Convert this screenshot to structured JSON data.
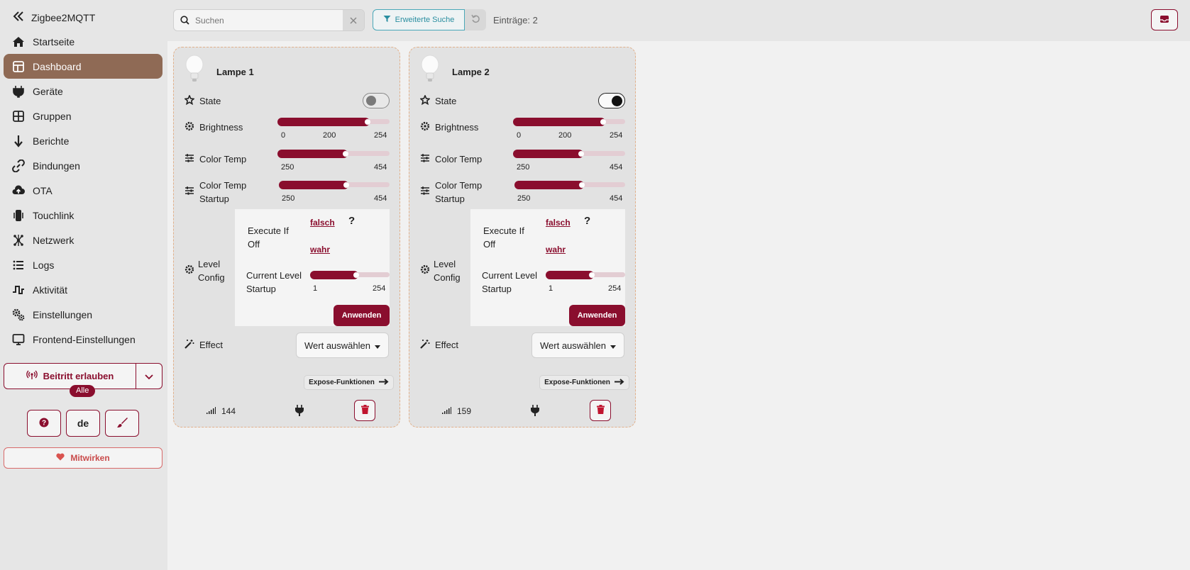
{
  "app": {
    "title": "Zigbee2MQTT"
  },
  "nav": [
    {
      "label": "Startseite",
      "icon": "home-icon",
      "active": false
    },
    {
      "label": "Dashboard",
      "icon": "dashboard-icon",
      "active": true
    },
    {
      "label": "Geräte",
      "icon": "plug-icon",
      "active": false
    },
    {
      "label": "Gruppen",
      "icon": "groups-icon",
      "active": false
    },
    {
      "label": "Berichte",
      "icon": "arrow-down-icon",
      "active": false
    },
    {
      "label": "Bindungen",
      "icon": "link-icon",
      "active": false
    },
    {
      "label": "OTA",
      "icon": "cloud-upload-icon",
      "active": false
    },
    {
      "label": "Touchlink",
      "icon": "touchlink-icon",
      "active": false
    },
    {
      "label": "Netzwerk",
      "icon": "network-icon",
      "active": false
    },
    {
      "label": "Logs",
      "icon": "list-icon",
      "active": false
    },
    {
      "label": "Aktivität",
      "icon": "activity-icon",
      "active": false
    },
    {
      "label": "Einstellungen",
      "icon": "gears-icon",
      "active": false
    },
    {
      "label": "Frontend-Einstellungen",
      "icon": "monitor-icon",
      "active": false
    }
  ],
  "join": {
    "label": "Beitritt erlauben",
    "badge": "Alle"
  },
  "language": "de",
  "contribute_label": "Mitwirken",
  "toolbar": {
    "search_placeholder": "Suchen",
    "advanced_search_label": "Erweiterte Suche",
    "entries_text": "Einträge: 2"
  },
  "colors": {
    "accent": "#8a0e2e",
    "active_nav": "#8f6a55",
    "teal": "#2a8ea0"
  },
  "labels": {
    "state": "State",
    "brightness": "Brightness",
    "color_temp": "Color Temp",
    "color_temp_startup_1": "Color Temp",
    "color_temp_startup_2": "Startup",
    "level_config_1": "Level",
    "level_config_2": "Config",
    "execute_if_off_1": "Execute If",
    "execute_if_off_2": "Off",
    "false_option": "falsch",
    "true_option": "wahr",
    "help": "?",
    "current_level_startup_1": "Current Level",
    "current_level_startup_2": "Startup",
    "apply": "Anwenden",
    "effect": "Effect",
    "select_value": "Wert auswählen",
    "expose_functions": "Expose-Funktionen"
  },
  "devices": [
    {
      "name": "Lampe 1",
      "state_on": false,
      "brightness": {
        "value": 200,
        "min": 0,
        "max": 254,
        "mark": 200
      },
      "color_temp": {
        "value": 370,
        "min": 250,
        "max": 454
      },
      "color_temp_startup": {
        "value": 370,
        "min": 250,
        "max": 454
      },
      "current_level_startup": {
        "value": 140,
        "min": 1,
        "max": 254
      },
      "linkquality": "144"
    },
    {
      "name": "Lampe 2",
      "state_on": true,
      "brightness": {
        "value": 200,
        "min": 0,
        "max": 254,
        "mark": 200
      },
      "color_temp": {
        "value": 370,
        "min": 250,
        "max": 454
      },
      "color_temp_startup": {
        "value": 370,
        "min": 250,
        "max": 454
      },
      "current_level_startup": {
        "value": 140,
        "min": 1,
        "max": 254
      },
      "linkquality": "159"
    }
  ]
}
